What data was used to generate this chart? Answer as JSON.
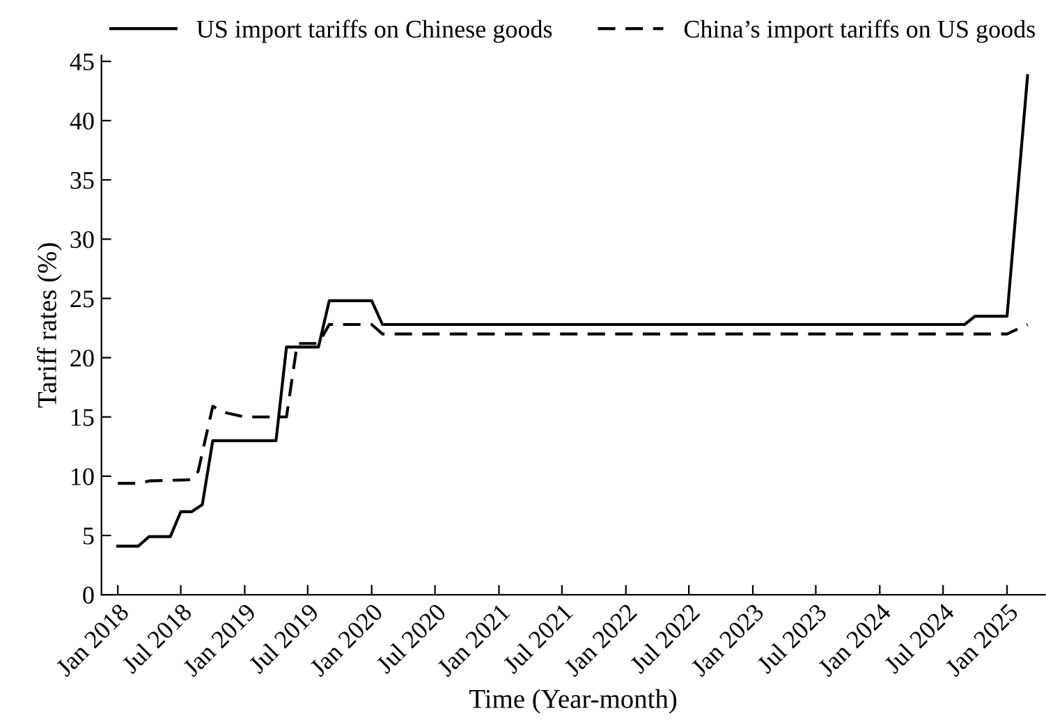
{
  "chart_data": {
    "type": "line",
    "xlabel": "Time (Year-month)",
    "ylabel": "Tariff rates (%)",
    "series": [
      {
        "name": "US import tariffs on Chinese goods",
        "color": "#000000",
        "line_style": "solid",
        "x": [
          "2018-01",
          "2018-03",
          "2018-04",
          "2018-06",
          "2018-07",
          "2018-08",
          "2018-09",
          "2018-10",
          "2019-04",
          "2019-05",
          "2019-08",
          "2019-09",
          "2020-01",
          "2020-02",
          "2024-09",
          "2024-10",
          "2025-01",
          "2025-03"
        ],
        "values": [
          4.1,
          4.1,
          4.9,
          4.9,
          7.0,
          7.0,
          7.6,
          13.0,
          13.0,
          20.9,
          20.9,
          24.8,
          24.8,
          22.8,
          22.8,
          23.5,
          23.5,
          43.8
        ]
      },
      {
        "name": "China’s import tariffs on US goods",
        "color": "#000000",
        "line_style": "dashed",
        "x": [
          "2018-01",
          "2018-03",
          "2018-04",
          "2018-08",
          "2018-08-20",
          "2018-10",
          "2018-11",
          "2019-01",
          "2019-05",
          "2019-06",
          "2019-08",
          "2019-09",
          "2020-01",
          "2020-02",
          "2025-01",
          "2025-03"
        ],
        "values": [
          9.4,
          9.4,
          9.6,
          9.7,
          10.4,
          15.9,
          15.4,
          15.0,
          15.0,
          21.2,
          21.2,
          22.8,
          22.8,
          22.0,
          22.0,
          22.8
        ]
      }
    ],
    "xlim": [
      "2017-11-15",
      "2025-04-20"
    ],
    "xticks": [
      {
        "value": "2018-01",
        "label": "Jan 2018"
      },
      {
        "value": "2018-07",
        "label": "Jul 2018"
      },
      {
        "value": "2019-01",
        "label": "Jan 2019"
      },
      {
        "value": "2019-07",
        "label": "Jul 2019"
      },
      {
        "value": "2020-01",
        "label": "Jan 2020"
      },
      {
        "value": "2020-07",
        "label": "Jul 2020"
      },
      {
        "value": "2021-01",
        "label": "Jan 2021"
      },
      {
        "value": "2021-07",
        "label": "Jul 2021"
      },
      {
        "value": "2022-01",
        "label": "Jan 2022"
      },
      {
        "value": "2022-07",
        "label": "Jul 2022"
      },
      {
        "value": "2023-01",
        "label": "Jan 2023"
      },
      {
        "value": "2023-07",
        "label": "Jul 2023"
      },
      {
        "value": "2024-01",
        "label": "Jan 2024"
      },
      {
        "value": "2024-07",
        "label": "Jul 2024"
      },
      {
        "value": "2025-01",
        "label": "Jan 2025"
      }
    ],
    "ylim": [
      0,
      45.5
    ],
    "yticks": [
      0,
      5,
      10,
      15,
      20,
      25,
      30,
      35,
      40,
      45
    ],
    "grid": false,
    "legend": "top",
    "marker": "none"
  }
}
